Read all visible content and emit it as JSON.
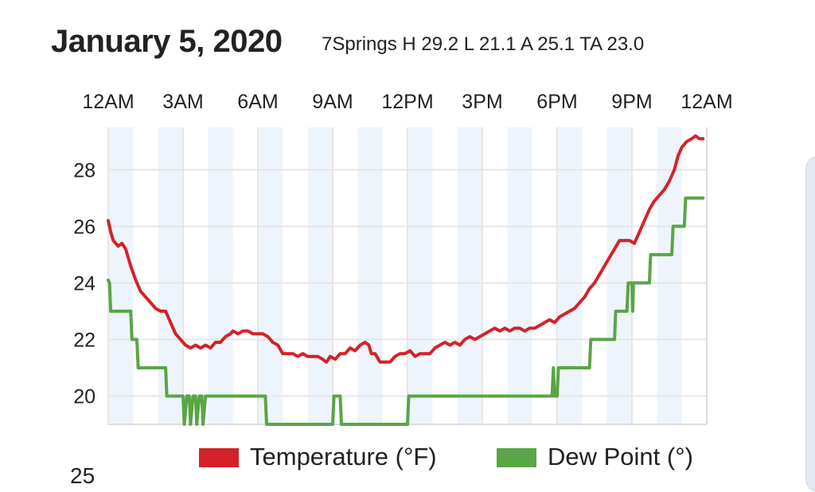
{
  "header": {
    "date": "January 5, 2020",
    "summary": "7Springs H 29.2 L 21.1 A 25.1 TA 23.0"
  },
  "colors": {
    "temperature": "#d3222a",
    "dew_point": "#5aa545",
    "band": "#eef4fb",
    "grid": "#e6e6e6"
  },
  "cutoff_label": "25",
  "chart_data": {
    "type": "line",
    "title": "",
    "xlabel": "",
    "ylabel": "",
    "x_range_hours": [
      0,
      24
    ],
    "ylim": [
      19,
      29.5
    ],
    "y_ticks": [
      20,
      22,
      24,
      26,
      28
    ],
    "x_ticks": [
      {
        "hour": 0,
        "label": "12AM"
      },
      {
        "hour": 3,
        "label": "3AM"
      },
      {
        "hour": 6,
        "label": "6AM"
      },
      {
        "hour": 9,
        "label": "9AM"
      },
      {
        "hour": 12,
        "label": "12PM"
      },
      {
        "hour": 15,
        "label": "3PM"
      },
      {
        "hour": 18,
        "label": "6PM"
      },
      {
        "hour": 21,
        "label": "9PM"
      },
      {
        "hour": 24,
        "label": "12AM"
      }
    ],
    "grid": true,
    "legend_position": "bottom",
    "series": [
      {
        "name": "Temperature (°F)",
        "color": "#d3222a",
        "points": [
          [
            0.0,
            26.2
          ],
          [
            0.1,
            25.8
          ],
          [
            0.2,
            25.5
          ],
          [
            0.4,
            25.3
          ],
          [
            0.55,
            25.4
          ],
          [
            0.7,
            25.2
          ],
          [
            0.9,
            24.6
          ],
          [
            1.1,
            24.1
          ],
          [
            1.3,
            23.7
          ],
          [
            1.5,
            23.5
          ],
          [
            1.7,
            23.3
          ],
          [
            1.9,
            23.1
          ],
          [
            2.1,
            23.0
          ],
          [
            2.3,
            23.0
          ],
          [
            2.5,
            22.6
          ],
          [
            2.7,
            22.2
          ],
          [
            2.9,
            22.0
          ],
          [
            3.1,
            21.8
          ],
          [
            3.3,
            21.7
          ],
          [
            3.5,
            21.8
          ],
          [
            3.7,
            21.7
          ],
          [
            3.9,
            21.8
          ],
          [
            4.1,
            21.7
          ],
          [
            4.3,
            21.9
          ],
          [
            4.5,
            21.9
          ],
          [
            4.7,
            22.1
          ],
          [
            4.9,
            22.2
          ],
          [
            5.0,
            22.3
          ],
          [
            5.2,
            22.2
          ],
          [
            5.4,
            22.3
          ],
          [
            5.6,
            22.3
          ],
          [
            5.8,
            22.2
          ],
          [
            6.0,
            22.2
          ],
          [
            6.2,
            22.2
          ],
          [
            6.4,
            22.1
          ],
          [
            6.6,
            21.9
          ],
          [
            6.8,
            21.8
          ],
          [
            7.0,
            21.5
          ],
          [
            7.2,
            21.5
          ],
          [
            7.4,
            21.5
          ],
          [
            7.6,
            21.4
          ],
          [
            7.8,
            21.5
          ],
          [
            8.0,
            21.4
          ],
          [
            8.2,
            21.4
          ],
          [
            8.4,
            21.4
          ],
          [
            8.6,
            21.3
          ],
          [
            8.75,
            21.2
          ],
          [
            8.9,
            21.4
          ],
          [
            9.1,
            21.3
          ],
          [
            9.3,
            21.5
          ],
          [
            9.5,
            21.5
          ],
          [
            9.7,
            21.7
          ],
          [
            9.9,
            21.6
          ],
          [
            10.1,
            21.8
          ],
          [
            10.3,
            21.9
          ],
          [
            10.45,
            21.8
          ],
          [
            10.55,
            21.5
          ],
          [
            10.7,
            21.5
          ],
          [
            10.9,
            21.2
          ],
          [
            11.1,
            21.2
          ],
          [
            11.3,
            21.2
          ],
          [
            11.5,
            21.4
          ],
          [
            11.7,
            21.5
          ],
          [
            11.9,
            21.5
          ],
          [
            12.1,
            21.6
          ],
          [
            12.3,
            21.4
          ],
          [
            12.5,
            21.5
          ],
          [
            12.7,
            21.5
          ],
          [
            12.9,
            21.5
          ],
          [
            13.1,
            21.7
          ],
          [
            13.3,
            21.8
          ],
          [
            13.5,
            21.9
          ],
          [
            13.7,
            21.8
          ],
          [
            13.9,
            21.9
          ],
          [
            14.1,
            21.8
          ],
          [
            14.3,
            22.0
          ],
          [
            14.5,
            22.1
          ],
          [
            14.7,
            22.0
          ],
          [
            14.9,
            22.1
          ],
          [
            15.1,
            22.2
          ],
          [
            15.3,
            22.3
          ],
          [
            15.5,
            22.4
          ],
          [
            15.7,
            22.3
          ],
          [
            15.9,
            22.4
          ],
          [
            16.1,
            22.3
          ],
          [
            16.3,
            22.4
          ],
          [
            16.5,
            22.4
          ],
          [
            16.7,
            22.3
          ],
          [
            16.9,
            22.4
          ],
          [
            17.1,
            22.4
          ],
          [
            17.3,
            22.5
          ],
          [
            17.5,
            22.6
          ],
          [
            17.7,
            22.7
          ],
          [
            17.9,
            22.6
          ],
          [
            18.1,
            22.8
          ],
          [
            18.3,
            22.9
          ],
          [
            18.5,
            23.0
          ],
          [
            18.7,
            23.1
          ],
          [
            18.9,
            23.3
          ],
          [
            19.1,
            23.5
          ],
          [
            19.3,
            23.8
          ],
          [
            19.5,
            24.0
          ],
          [
            19.7,
            24.3
          ],
          [
            19.9,
            24.6
          ],
          [
            20.1,
            24.9
          ],
          [
            20.3,
            25.2
          ],
          [
            20.5,
            25.5
          ],
          [
            20.7,
            25.5
          ],
          [
            20.9,
            25.5
          ],
          [
            21.1,
            25.4
          ],
          [
            21.3,
            25.8
          ],
          [
            21.5,
            26.2
          ],
          [
            21.7,
            26.6
          ],
          [
            21.9,
            26.9
          ],
          [
            22.1,
            27.1
          ],
          [
            22.3,
            27.3
          ],
          [
            22.5,
            27.6
          ],
          [
            22.7,
            28.0
          ],
          [
            22.85,
            28.5
          ],
          [
            23.0,
            28.8
          ],
          [
            23.2,
            29.0
          ],
          [
            23.4,
            29.1
          ],
          [
            23.55,
            29.2
          ],
          [
            23.7,
            29.1
          ],
          [
            23.85,
            29.1
          ]
        ]
      },
      {
        "name": "Dew Point (°)",
        "color": "#5aa545",
        "points": [
          [
            0.0,
            24.1
          ],
          [
            0.05,
            24.0
          ],
          [
            0.1,
            23.0
          ],
          [
            0.9,
            23.0
          ],
          [
            0.95,
            22.0
          ],
          [
            1.15,
            22.0
          ],
          [
            1.2,
            21.0
          ],
          [
            2.3,
            21.0
          ],
          [
            2.35,
            20.0
          ],
          [
            3.0,
            20.0
          ],
          [
            3.05,
            19.0
          ],
          [
            3.15,
            20.0
          ],
          [
            3.25,
            20.0
          ],
          [
            3.3,
            19.0
          ],
          [
            3.4,
            20.0
          ],
          [
            3.5,
            20.0
          ],
          [
            3.55,
            19.0
          ],
          [
            3.65,
            20.0
          ],
          [
            3.75,
            20.0
          ],
          [
            3.8,
            19.0
          ],
          [
            3.9,
            20.0
          ],
          [
            6.3,
            20.0
          ],
          [
            6.35,
            19.0
          ],
          [
            9.0,
            19.0
          ],
          [
            9.05,
            20.0
          ],
          [
            9.3,
            20.0
          ],
          [
            9.35,
            19.0
          ],
          [
            12.0,
            19.0
          ],
          [
            12.05,
            20.0
          ],
          [
            17.8,
            20.0
          ],
          [
            17.85,
            21.0
          ],
          [
            17.9,
            20.0
          ],
          [
            18.0,
            20.0
          ],
          [
            18.05,
            21.0
          ],
          [
            19.3,
            21.0
          ],
          [
            19.35,
            22.0
          ],
          [
            20.3,
            22.0
          ],
          [
            20.35,
            23.0
          ],
          [
            20.8,
            23.0
          ],
          [
            20.85,
            24.0
          ],
          [
            21.0,
            24.0
          ],
          [
            21.03,
            23.0
          ],
          [
            21.06,
            24.0
          ],
          [
            21.7,
            24.0
          ],
          [
            21.75,
            25.0
          ],
          [
            22.6,
            25.0
          ],
          [
            22.65,
            26.0
          ],
          [
            23.1,
            26.0
          ],
          [
            23.15,
            27.0
          ],
          [
            23.85,
            27.0
          ]
        ]
      }
    ]
  }
}
